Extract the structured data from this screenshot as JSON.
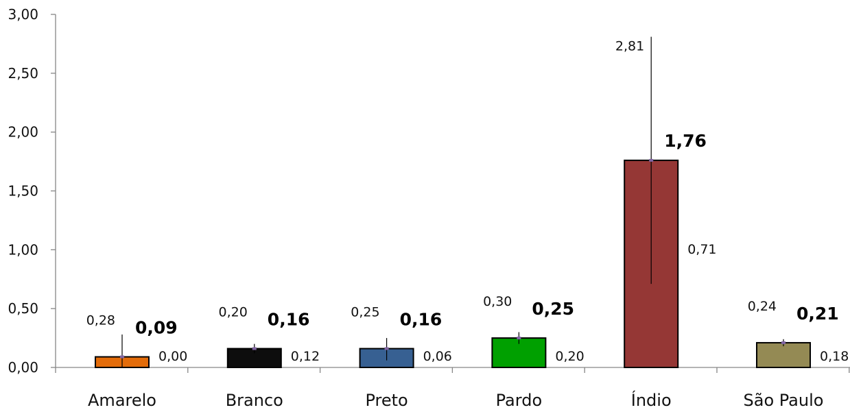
{
  "chart_data": {
    "type": "bar",
    "title": "",
    "xlabel": "",
    "ylabel": "",
    "ylim": [
      0,
      3
    ],
    "yticks": [
      "0,00",
      "0,50",
      "1,00",
      "1,50",
      "2,00",
      "2,50",
      "3,00"
    ],
    "yticks_values": [
      0,
      0.5,
      1,
      1.5,
      2,
      2.5,
      3
    ],
    "grid": false,
    "legend": "none",
    "categories": [
      "Amarelo",
      "Branco",
      "Preto",
      "Pardo",
      "Índio",
      "São Paulo"
    ],
    "values": [
      0.09,
      0.16,
      0.16,
      0.25,
      1.76,
      0.21
    ],
    "value_labels": [
      "0,09",
      "0,16",
      "0,16",
      "0,25",
      "1,76",
      "0,21"
    ],
    "upper": [
      0.28,
      0.2,
      0.25,
      0.3,
      2.81,
      0.24
    ],
    "upper_labels": [
      "0,28",
      "0,20",
      "0,25",
      "0,30",
      "2,81",
      "0,24"
    ],
    "lower": [
      0.0,
      0.12,
      0.06,
      0.2,
      0.71,
      0.18
    ],
    "lower_labels": [
      "0,00",
      "0,12",
      "0,06",
      "0,20",
      "0,71",
      "0,18"
    ],
    "colors": [
      "#E36C0A",
      "#0D0D0D",
      "#376092",
      "#00A000",
      "#953735",
      "#948A54"
    ]
  }
}
